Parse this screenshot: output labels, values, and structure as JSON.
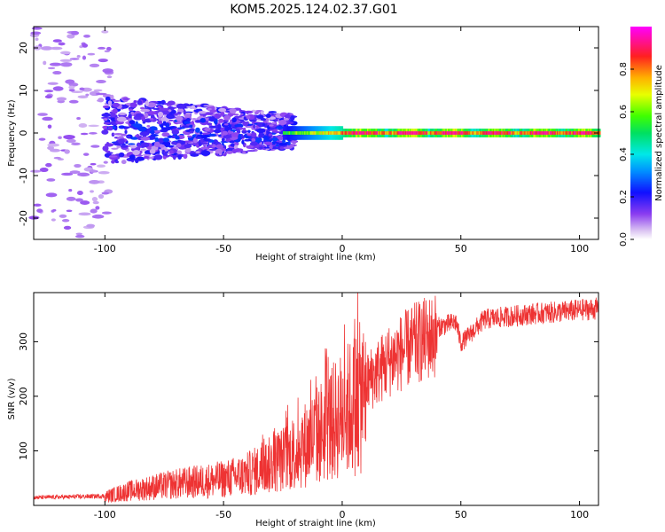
{
  "title": "KOM5.2025.124.02.37.G01",
  "chart_data": [
    {
      "type": "heatmap",
      "xlabel": "Height of straight line (km)",
      "ylabel": "Frequency (Hz)",
      "xlim": [
        -130,
        108
      ],
      "ylim": [
        -25,
        25
      ],
      "xticks": [
        -100,
        -50,
        0,
        50,
        100
      ],
      "yticks": [
        -20,
        -10,
        0,
        10,
        20
      ],
      "colorbar": {
        "label": "Normalized spectral amplitude",
        "ticks": [
          "0.0",
          "0.2",
          "0.4",
          "0.6",
          "0.8"
        ],
        "range": [
          0,
          1
        ]
      },
      "description_regions": [
        {
          "x_range": [
            -130,
            -100
          ],
          "freq_range": [
            -25,
            25
          ],
          "amplitude": 0.05
        },
        {
          "x_range": [
            -100,
            -25
          ],
          "freq_range": [
            -7,
            9
          ],
          "amplitude": 0.15
        },
        {
          "x_range": [
            -25,
            108
          ],
          "freq_range": [
            -1,
            1
          ],
          "amplitude": 0.5
        }
      ]
    },
    {
      "type": "line",
      "xlabel": "Height of straight line (km)",
      "ylabel": "SNR (v/v)",
      "xlim": [
        -130,
        108
      ],
      "ylim": [
        0,
        390
      ],
      "xticks": [
        -100,
        -50,
        0,
        50,
        100
      ],
      "yticks": [
        100,
        200,
        300
      ],
      "series_color": "#ee3333",
      "envelope": {
        "x": [
          -130,
          -100,
          -90,
          -80,
          -70,
          -60,
          -50,
          -40,
          -30,
          -20,
          -10,
          0,
          10,
          20,
          30,
          40,
          48,
          50,
          60,
          70,
          80,
          90,
          100,
          108
        ],
        "y": [
          15,
          18,
          30,
          38,
          45,
          50,
          55,
          65,
          85,
          110,
          150,
          190,
          235,
          280,
          310,
          330,
          340,
          300,
          345,
          350,
          355,
          358,
          362,
          365
        ]
      }
    }
  ]
}
